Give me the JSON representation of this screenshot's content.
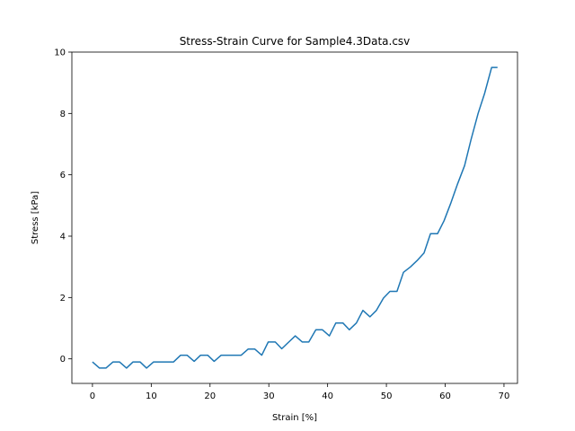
{
  "chart_data": {
    "type": "line",
    "title": "Stress-Strain Curve for Sample4.3Data.csv",
    "xlabel": "Strain [%]",
    "ylabel": "Stress [kPa]",
    "xlim": [
      -3.5,
      72.3
    ],
    "ylim": [
      -0.8,
      10
    ],
    "xticks": [
      0,
      10,
      20,
      30,
      40,
      50,
      60,
      70
    ],
    "yticks": [
      0,
      2,
      4,
      6,
      8,
      10
    ],
    "grid": false,
    "series": [
      {
        "color": "#1f77b4",
        "x": [
          0,
          1.2,
          2.3,
          3.5,
          4.6,
          5.8,
          6.9,
          8.1,
          9.2,
          10.4,
          11.5,
          12.7,
          13.8,
          15.0,
          16.1,
          17.3,
          18.4,
          19.6,
          20.7,
          21.9,
          23.0,
          24.2,
          25.3,
          26.5,
          27.6,
          28.8,
          29.9,
          31.1,
          32.2,
          33.4,
          34.5,
          35.7,
          36.8,
          38.0,
          39.1,
          40.3,
          41.4,
          42.6,
          43.7,
          44.9,
          46.0,
          47.2,
          48.3,
          49.5,
          50.6,
          51.8,
          52.9,
          54.1,
          55.2,
          56.4,
          57.5,
          58.7,
          59.8,
          61.0,
          62.1,
          63.3,
          64.4,
          65.6,
          66.7,
          67.9,
          68.9
        ],
        "y": [
          -0.1,
          -0.3,
          -0.3,
          -0.1,
          -0.1,
          -0.3,
          -0.1,
          -0.1,
          -0.3,
          -0.1,
          -0.1,
          -0.1,
          -0.1,
          0.12,
          0.12,
          -0.08,
          0.12,
          0.12,
          -0.08,
          0.12,
          0.12,
          0.12,
          0.12,
          0.32,
          0.32,
          0.12,
          0.55,
          0.55,
          0.33,
          0.55,
          0.75,
          0.55,
          0.55,
          0.95,
          0.95,
          0.75,
          1.17,
          1.17,
          0.95,
          1.17,
          1.58,
          1.37,
          1.58,
          1.98,
          2.2,
          2.2,
          2.82,
          3.0,
          3.2,
          3.45,
          4.08,
          4.08,
          4.5,
          5.1,
          5.7,
          6.3,
          7.15,
          8.0,
          8.65,
          9.5,
          9.5
        ]
      }
    ]
  }
}
